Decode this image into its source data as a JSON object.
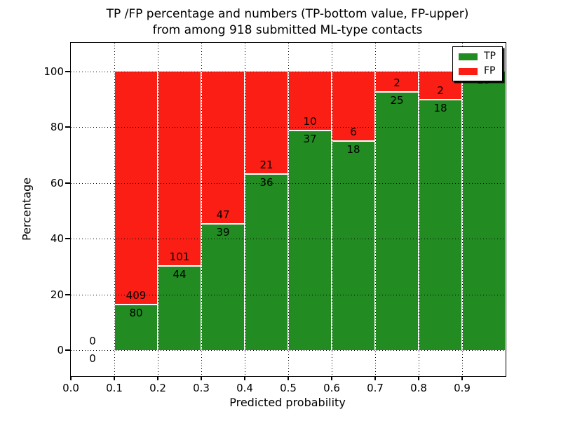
{
  "title": {
    "line1": "TP /FP percentage and numbers (TP-bottom value, FP-upper)",
    "line2": "from among 918 submitted ML-type contacts"
  },
  "ylabel": "Percentage",
  "xlabel": "Predicted probability",
  "legend": {
    "position": "upper right",
    "items": [
      {
        "label": "TP",
        "color": "#228b22"
      },
      {
        "label": "FP",
        "color": "#fb1e14"
      }
    ]
  },
  "colors": {
    "tp": "#228b22",
    "fp": "#fb1e14",
    "grid": "#000000",
    "background": "#ffffff"
  },
  "chart_data": {
    "type": "bar",
    "stacked": true,
    "normalized": "each bin stacked to 100%, labels show raw counts (TP bottom, FP upper)",
    "title": "TP /FP percentage and numbers (TP-bottom value, FP-upper) from among 918 submitted ML-type contacts",
    "xlabel": "Predicted probability",
    "ylabel": "Percentage",
    "total_contacts": 918,
    "bin_width": 0.1,
    "bin_starts": [
      0.0,
      0.1,
      0.2,
      0.3,
      0.4,
      0.5,
      0.6,
      0.7,
      0.8,
      0.9
    ],
    "series": [
      {
        "name": "TP",
        "counts": [
          0,
          80,
          44,
          39,
          36,
          37,
          18,
          25,
          18,
          23
        ]
      },
      {
        "name": "FP",
        "counts": [
          0,
          409,
          101,
          47,
          21,
          10,
          6,
          2,
          2,
          0
        ]
      }
    ],
    "tp_percent_of_bin": [
      null,
      16.4,
      30.3,
      45.3,
      63.2,
      78.7,
      75.0,
      92.6,
      90.0,
      100.0
    ],
    "yticks": [
      0,
      20,
      40,
      60,
      80,
      100
    ],
    "xticks": [
      "0.0",
      "0.1",
      "0.2",
      "0.3",
      "0.4",
      "0.5",
      "0.6",
      "0.7",
      "0.8",
      "0.9"
    ],
    "xlim": [
      0.0,
      1.0
    ],
    "ylim_percent": [
      0,
      100
    ],
    "grid": true,
    "legend_position": "upper right"
  }
}
